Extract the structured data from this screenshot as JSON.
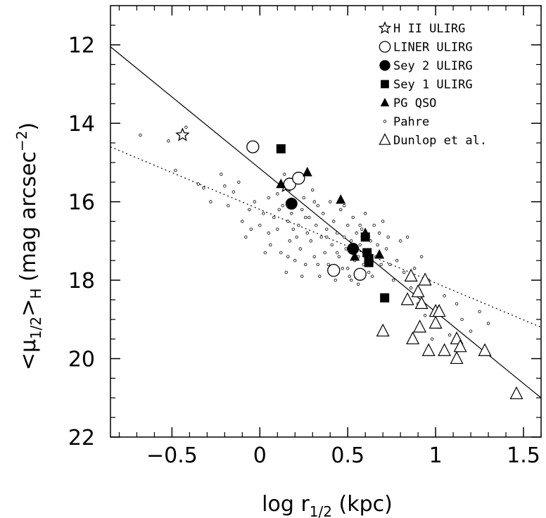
{
  "chart_data": {
    "type": "scatter",
    "xlabel": "log r1/2 (kpc)",
    "ylabel": "<μ1/2>H (mag arcsec−2)",
    "xlim": [
      -0.85,
      1.6
    ],
    "ylim": [
      22,
      11
    ],
    "y_inverted": true,
    "grid": false,
    "legend_position": "top-right",
    "x_ticks": [
      -0.5,
      0,
      0.5,
      1,
      1.5
    ],
    "x_tick_labels": [
      "−0.5",
      "0",
      "0.5",
      "1",
      "1.5"
    ],
    "y_ticks": [
      12,
      14,
      16,
      18,
      20,
      22
    ],
    "y_tick_labels": [
      "12",
      "14",
      "16",
      "18",
      "20",
      "22"
    ],
    "series": [
      {
        "name": "H II ULIRG",
        "marker": "open-star",
        "points": [
          [
            -0.44,
            14.3
          ],
          [
            0.15,
            15.6
          ]
        ]
      },
      {
        "name": "LINER ULIRG",
        "marker": "open-circle",
        "points": [
          [
            -0.04,
            14.6
          ],
          [
            0.17,
            15.55
          ],
          [
            0.22,
            15.4
          ],
          [
            0.42,
            17.75
          ],
          [
            0.57,
            17.85
          ]
        ]
      },
      {
        "name": "Sey 2 ULIRG",
        "marker": "filled-circle",
        "points": [
          [
            0.18,
            16.05
          ],
          [
            0.53,
            17.2
          ]
        ]
      },
      {
        "name": "Sey 1 ULIRG",
        "marker": "filled-square",
        "points": [
          [
            0.12,
            14.65
          ],
          [
            0.6,
            16.9
          ],
          [
            0.61,
            17.3
          ],
          [
            0.62,
            17.45
          ],
          [
            0.62,
            17.55
          ],
          [
            0.71,
            18.45
          ]
        ]
      },
      {
        "name": "PG QSO",
        "marker": "filled-triangle",
        "points": [
          [
            0.12,
            15.55
          ],
          [
            0.27,
            15.25
          ],
          [
            0.46,
            15.95
          ],
          [
            0.54,
            17.4
          ],
          [
            0.6,
            16.8
          ],
          [
            0.68,
            17.35
          ]
        ]
      },
      {
        "name": "Pahre",
        "marker": "small-open-circle",
        "points": [
          [
            -0.68,
            14.3
          ],
          [
            -0.52,
            14.45
          ],
          [
            -0.42,
            14.1
          ],
          [
            -0.48,
            15.2
          ],
          [
            -0.35,
            15.55
          ],
          [
            -0.32,
            15.65
          ],
          [
            -0.28,
            16.0
          ],
          [
            -0.22,
            15.3
          ],
          [
            -0.2,
            15.6
          ],
          [
            -0.18,
            16.1
          ],
          [
            -0.15,
            15.75
          ],
          [
            -0.12,
            15.5
          ],
          [
            -0.1,
            16.5
          ],
          [
            -0.08,
            16.9
          ],
          [
            -0.06,
            16.2
          ],
          [
            -0.03,
            16.0
          ],
          [
            0.0,
            16.6
          ],
          [
            0.02,
            16.3
          ],
          [
            0.05,
            16.8
          ],
          [
            0.06,
            17.1
          ],
          [
            0.08,
            16.4
          ],
          [
            0.1,
            16.7
          ],
          [
            0.1,
            15.8
          ],
          [
            0.12,
            17.3
          ],
          [
            0.13,
            16.1
          ],
          [
            0.15,
            17.8
          ],
          [
            0.16,
            16.5
          ],
          [
            0.17,
            17.0
          ],
          [
            0.18,
            16.3
          ],
          [
            0.2,
            17.5
          ],
          [
            0.21,
            16.9
          ],
          [
            0.22,
            16.6
          ],
          [
            0.23,
            17.2
          ],
          [
            0.24,
            16.2
          ],
          [
            0.25,
            15.9
          ],
          [
            0.26,
            17.6
          ],
          [
            0.27,
            16.8
          ],
          [
            0.28,
            16.4
          ],
          [
            0.29,
            17.0
          ],
          [
            0.3,
            15.7
          ],
          [
            0.31,
            17.4
          ],
          [
            0.32,
            16.6
          ],
          [
            0.33,
            16.1
          ],
          [
            0.34,
            17.9
          ],
          [
            0.35,
            16.9
          ],
          [
            0.36,
            16.3
          ],
          [
            0.37,
            17.3
          ],
          [
            0.38,
            16.7
          ],
          [
            0.39,
            17.6
          ],
          [
            0.4,
            16.0
          ],
          [
            0.41,
            17.1
          ],
          [
            0.42,
            16.5
          ],
          [
            0.43,
            18.0
          ],
          [
            0.44,
            16.8
          ],
          [
            0.45,
            17.4
          ],
          [
            0.46,
            16.2
          ],
          [
            0.47,
            17.7
          ],
          [
            0.48,
            16.9
          ],
          [
            0.49,
            17.2
          ],
          [
            0.5,
            16.6
          ],
          [
            0.51,
            17.9
          ],
          [
            0.52,
            17.0
          ],
          [
            0.53,
            16.4
          ],
          [
            0.54,
            17.5
          ],
          [
            0.55,
            16.8
          ],
          [
            0.56,
            18.1
          ],
          [
            0.57,
            17.1
          ],
          [
            0.58,
            16.7
          ],
          [
            0.59,
            17.6
          ],
          [
            0.6,
            16.3
          ],
          [
            0.62,
            17.8
          ],
          [
            0.63,
            17.0
          ],
          [
            0.65,
            16.6
          ],
          [
            0.66,
            17.4
          ],
          [
            0.68,
            16.8
          ],
          [
            0.7,
            16.5
          ],
          [
            0.72,
            17.2
          ],
          [
            0.74,
            17.6
          ],
          [
            0.76,
            18.0
          ],
          [
            0.78,
            17.5
          ],
          [
            0.8,
            17.0
          ],
          [
            0.82,
            17.8
          ],
          [
            0.84,
            16.9
          ],
          [
            0.86,
            18.2
          ],
          [
            0.88,
            17.7
          ],
          [
            0.9,
            18.6
          ],
          [
            0.92,
            17.4
          ],
          [
            0.94,
            18.9
          ],
          [
            0.96,
            18.0
          ],
          [
            0.98,
            19.5
          ],
          [
            1.0,
            18.7
          ],
          [
            1.02,
            19.2
          ],
          [
            1.05,
            18.4
          ],
          [
            1.08,
            19.4
          ],
          [
            1.12,
            18.6
          ],
          [
            1.15,
            19.0
          ],
          [
            1.2,
            19.3
          ],
          [
            1.25,
            18.8
          ],
          [
            1.3,
            19.1
          ],
          [
            0.05,
            15.9
          ],
          [
            0.14,
            15.3
          ],
          [
            0.19,
            16.7
          ],
          [
            0.26,
            16.4
          ],
          [
            0.33,
            17.6
          ],
          [
            0.41,
            17.8
          ],
          [
            0.48,
            16.1
          ],
          [
            0.52,
            18.0
          ],
          [
            0.57,
            16.6
          ],
          [
            0.64,
            17.9
          ],
          [
            0.69,
            17.6
          ],
          [
            0.73,
            16.9
          ],
          [
            -0.05,
            16.7
          ],
          [
            0.03,
            17.3
          ],
          [
            0.11,
            16.2
          ],
          [
            0.16,
            17.4
          ],
          [
            0.24,
            17.9
          ],
          [
            0.31,
            16.0
          ],
          [
            0.38,
            16.9
          ],
          [
            0.44,
            17.3
          ],
          [
            0.5,
            17.7
          ],
          [
            0.56,
            17.4
          ],
          [
            0.61,
            16.9
          ],
          [
            0.67,
            17.1
          ]
        ]
      },
      {
        "name": "Dunlop et al.",
        "marker": "open-triangle",
        "points": [
          [
            0.7,
            19.3
          ],
          [
            0.84,
            18.5
          ],
          [
            0.86,
            17.9
          ],
          [
            0.87,
            19.5
          ],
          [
            0.9,
            18.3
          ],
          [
            0.91,
            19.2
          ],
          [
            0.92,
            18.6
          ],
          [
            0.94,
            18.0
          ],
          [
            0.96,
            19.8
          ],
          [
            1.0,
            18.8
          ],
          [
            1.0,
            19.1
          ],
          [
            1.02,
            18.8
          ],
          [
            1.05,
            19.8
          ],
          [
            1.12,
            19.5
          ],
          [
            1.12,
            20.0
          ],
          [
            1.14,
            19.7
          ],
          [
            1.28,
            19.8
          ],
          [
            1.46,
            20.9
          ]
        ]
      }
    ],
    "fit_lines": [
      {
        "style": "solid",
        "x": [
          -0.85,
          1.6
        ],
        "y": [
          12.05,
          21.0
        ]
      },
      {
        "style": "dotted",
        "x": [
          -0.85,
          1.6
        ],
        "y": [
          14.6,
          19.2
        ]
      }
    ]
  }
}
